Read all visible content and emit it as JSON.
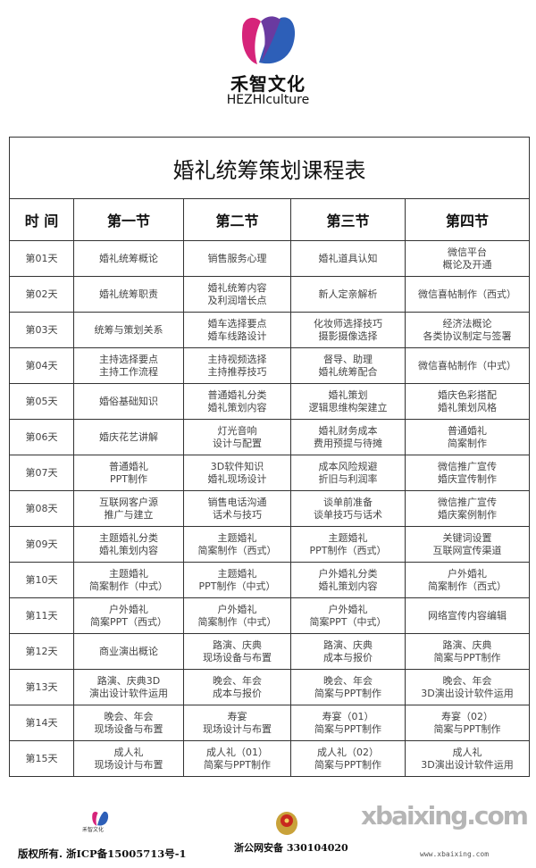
{
  "brand": {
    "name_cn": "禾智文化",
    "name_en": "HEZHIculture",
    "colors": {
      "magenta": "#d6247a",
      "blue": "#2d5fb8",
      "purple": "#6a3aa0"
    }
  },
  "table": {
    "title": "婚礼统筹策划课程表",
    "headers": [
      "时 间",
      "第一节",
      "第二节",
      "第三节",
      "第四节"
    ],
    "rows": [
      {
        "day": "第01天",
        "cells": [
          [
            "婚礼统筹概论"
          ],
          [
            "销售服务心理"
          ],
          [
            "婚礼道具认知"
          ],
          [
            "微信平台",
            "概论及开通"
          ]
        ]
      },
      {
        "day": "第02天",
        "cells": [
          [
            "婚礼统筹职责"
          ],
          [
            "婚礼统筹内容",
            "及利润增长点"
          ],
          [
            "新人定亲解析"
          ],
          [
            "微信喜帖制作（西式）"
          ]
        ]
      },
      {
        "day": "第03天",
        "cells": [
          [
            "统筹与策划关系"
          ],
          [
            "婚车选择要点",
            "婚车线路设计"
          ],
          [
            "化妆师选择技巧",
            "摄影摄像选择"
          ],
          [
            "经济法概论",
            "各类协议制定与签署"
          ]
        ]
      },
      {
        "day": "第04天",
        "cells": [
          [
            "主持选择要点",
            "主持工作流程"
          ],
          [
            "主持视频选择",
            "主持推荐技巧"
          ],
          [
            "督导、助理",
            "婚礼统筹配合"
          ],
          [
            "微信喜帖制作（中式）"
          ]
        ]
      },
      {
        "day": "第05天",
        "cells": [
          [
            "婚俗基础知识"
          ],
          [
            "普通婚礼分类",
            "婚礼策划内容"
          ],
          [
            "婚礼策划",
            "逻辑思维构架建立"
          ],
          [
            "婚庆色彩搭配",
            "婚礼策划风格"
          ]
        ]
      },
      {
        "day": "第06天",
        "cells": [
          [
            "婚庆花艺讲解"
          ],
          [
            "灯光音响",
            "设计与配置"
          ],
          [
            "婚礼财务成本",
            "费用预提与待摊"
          ],
          [
            "普通婚礼",
            "简案制作"
          ]
        ]
      },
      {
        "day": "第07天",
        "cells": [
          [
            "普通婚礼",
            "PPT制作"
          ],
          [
            "3D软件知识",
            "婚礼现场设计"
          ],
          [
            "成本风险规避",
            "折旧与利润率"
          ],
          [
            "微信推广宣传",
            "婚庆宣传制作"
          ]
        ]
      },
      {
        "day": "第08天",
        "cells": [
          [
            "互联网客户源",
            "推广与建立"
          ],
          [
            "销售电话沟通",
            "话术与技巧"
          ],
          [
            "谈单前准备",
            "谈单技巧与话术"
          ],
          [
            "微信推广宣传",
            "婚庆案例制作"
          ]
        ]
      },
      {
        "day": "第09天",
        "cells": [
          [
            "主题婚礼分类",
            "婚礼策划内容"
          ],
          [
            "主题婚礼",
            "简案制作（西式）"
          ],
          [
            "主题婚礼",
            "PPT制作（西式）"
          ],
          [
            "关键词设置",
            "互联网宣传渠道"
          ]
        ]
      },
      {
        "day": "第10天",
        "cells": [
          [
            "主题婚礼",
            "简案制作（中式）"
          ],
          [
            "主题婚礼",
            "PPT制作（中式）"
          ],
          [
            "户外婚礼分类",
            "婚礼策划内容"
          ],
          [
            "户外婚礼",
            "简案制作（西式）"
          ]
        ]
      },
      {
        "day": "第11天",
        "cells": [
          [
            "户外婚礼",
            "简案PPT（西式）"
          ],
          [
            "户外婚礼",
            "简案制作（中式）"
          ],
          [
            "户外婚礼",
            "简案PPT（中式）"
          ],
          [
            "网络宣传内容编辑"
          ]
        ]
      },
      {
        "day": "第12天",
        "cells": [
          [
            "商业演出概论"
          ],
          [
            "路演、庆典",
            "现场设备与布置"
          ],
          [
            "路演、庆典",
            "成本与报价"
          ],
          [
            "路演、庆典",
            "简案与PPT制作"
          ]
        ]
      },
      {
        "day": "第13天",
        "cells": [
          [
            "路演、庆典3D",
            "演出设计软件运用"
          ],
          [
            "晚会、年会",
            "成本与报价"
          ],
          [
            "晚会、年会",
            "简案与PPT制作"
          ],
          [
            "晚会、年会",
            "3D演出设计软件运用"
          ]
        ]
      },
      {
        "day": "第14天",
        "cells": [
          [
            "晚会、年会",
            "现场设备与布置"
          ],
          [
            "寿宴",
            "现场设计与布置"
          ],
          [
            "寿宴（01）",
            "简案与PPT制作"
          ],
          [
            "寿宴（02）",
            "简案与PPT制作"
          ]
        ]
      },
      {
        "day": "第15天",
        "cells": [
          [
            "成人礼",
            "现场设计与布置"
          ],
          [
            "成人礼（01）",
            "简案与PPT制作"
          ],
          [
            "成人礼（02）",
            "简案与PPT制作"
          ],
          [
            "成人礼",
            "3D演出设计软件运用"
          ]
        ]
      }
    ]
  },
  "footer": {
    "brand_cn": "禾智文化",
    "copyright": "版权所有. 浙ICP备15005713号-1",
    "police_record": "浙公网安备 330104020",
    "watermark": "xbaixing.com",
    "watermark_url": "www.xbaixing.com"
  }
}
